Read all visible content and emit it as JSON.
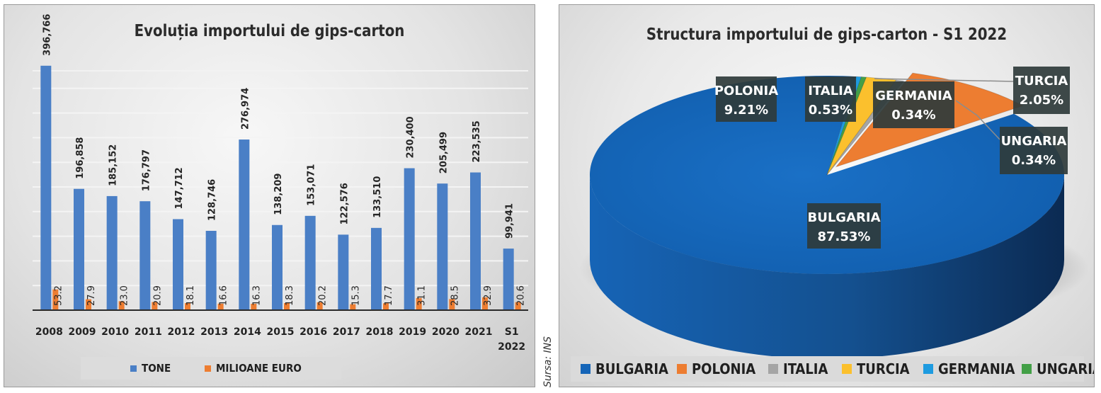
{
  "source": "Sursa: INS",
  "chart_data": [
    {
      "type": "bar",
      "title": "Evoluția importului de gips-carton",
      "categories": [
        "2008",
        "2009",
        "2010",
        "2011",
        "2012",
        "2013",
        "2014",
        "2015",
        "2016",
        "2017",
        "2018",
        "2019",
        "2020",
        "2021",
        "S1\n2022"
      ],
      "series": [
        {
          "name": "TONE",
          "color": "#4a7fc6",
          "values": [
            396766,
            196858,
            185152,
            176797,
            147712,
            128746,
            276974,
            138209,
            153071,
            122576,
            133510,
            230400,
            205499,
            223535,
            99941
          ],
          "labels": [
            "396,766",
            "196,858",
            "185,152",
            "176,797",
            "147,712",
            "128,746",
            "276,974",
            "138,209",
            "153,071",
            "122,576",
            "133,510",
            "230,400",
            "205,499",
            "223,535",
            "99,941"
          ]
        },
        {
          "name": "MILIOANE EURO",
          "color": "#ed7d31",
          "values": [
            53.2,
            27.9,
            23.0,
            20.9,
            18.1,
            16.6,
            16.3,
            18.3,
            20.2,
            15.3,
            17.7,
            31.1,
            28.5,
            32.9,
            20.6
          ],
          "labels": [
            "53.2",
            "27.9",
            "23.0",
            "20.9",
            "18.1",
            "16.6",
            "16.3",
            "18.3",
            "20.2",
            "15.3",
            "17.7",
            "31.1",
            "28.5",
            "32.9",
            "20.6"
          ]
        }
      ],
      "ylim": [
        0,
        400000
      ],
      "grid": true,
      "legend": "bottom"
    },
    {
      "type": "pie",
      "title": "Structura importului de gips-carton - S1 2022",
      "labels": [
        "BULGARIA",
        "POLONIA",
        "ITALIA",
        "TURCIA",
        "GERMANIA",
        "UNGARIA"
      ],
      "values": [
        87.53,
        9.21,
        0.53,
        2.05,
        0.34,
        0.34
      ],
      "value_labels": [
        "87.53%",
        "9.21%",
        "0.53%",
        "2.05%",
        "0.34%",
        "0.34%"
      ],
      "colors": [
        "#1565b8",
        "#ed7d31",
        "#a5a5a5",
        "#fbc02d",
        "#1e9be0",
        "#43a047"
      ],
      "legend": "bottom"
    }
  ]
}
